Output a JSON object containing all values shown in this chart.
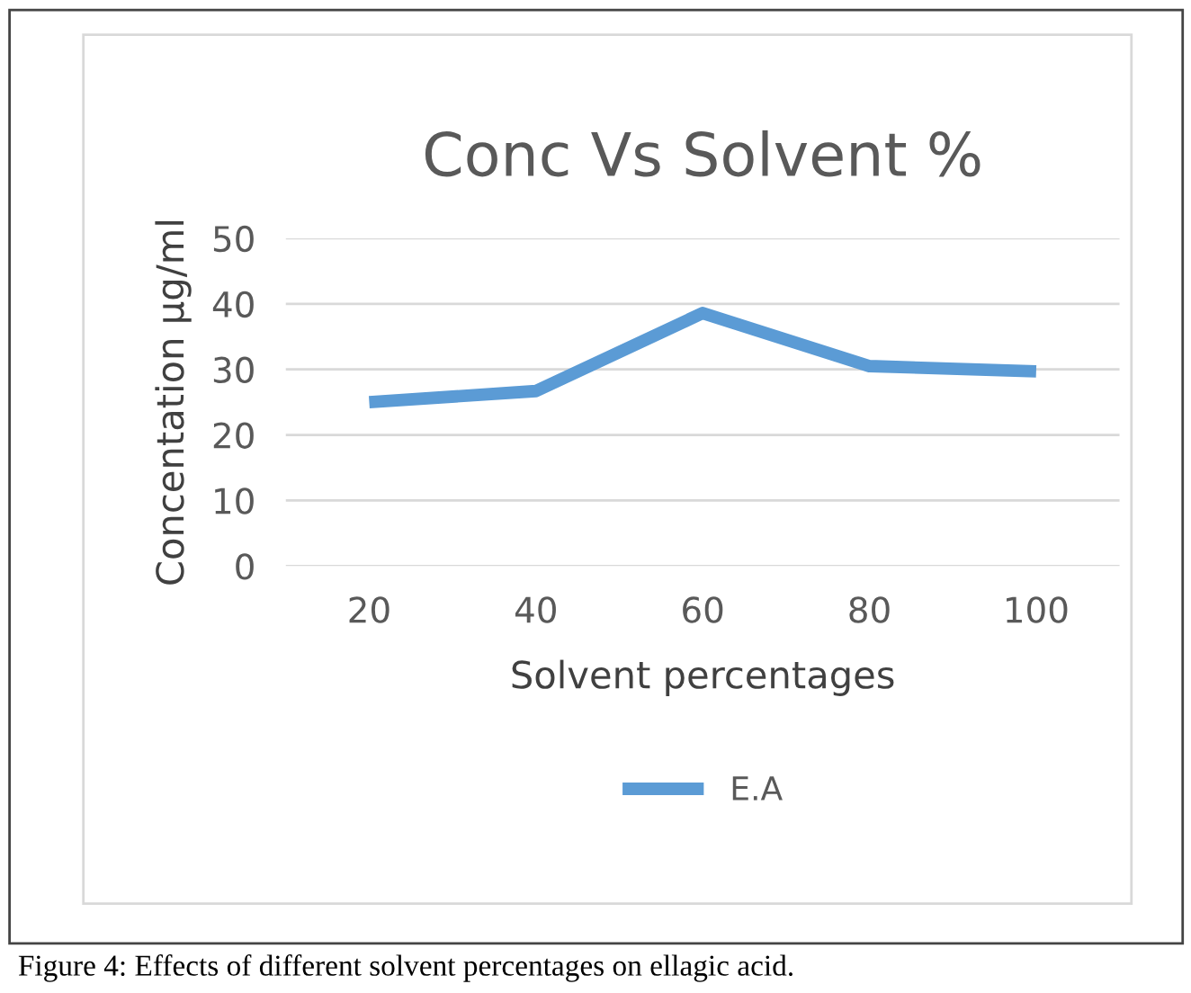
{
  "chart_data": {
    "type": "line",
    "title": "Conc Vs Solvent %",
    "xlabel": "Solvent percentages",
    "ylabel": "Concentation µg/ml",
    "categories": [
      "20",
      "40",
      "60",
      "80",
      "100"
    ],
    "series": [
      {
        "name": "E.A",
        "color": "#5b9bd5",
        "values": [
          25,
          26.7,
          38.6,
          30.5,
          29.7
        ]
      }
    ],
    "ylim": [
      0,
      50
    ],
    "yticks": [
      0,
      10,
      20,
      30,
      40,
      50
    ],
    "grid": "y",
    "legend": "bottom",
    "marker": "none",
    "line_style": "solid",
    "annotations": [
      "Figure 4: Effects of different solvent percentages on ellagic acid."
    ]
  }
}
